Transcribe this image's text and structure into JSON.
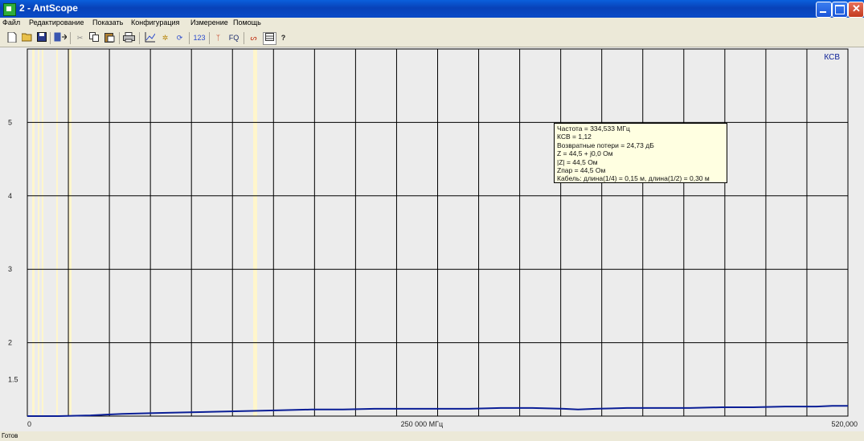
{
  "window": {
    "title": "2 - AntScope",
    "buttons": {
      "minimize": "_",
      "maximize": "□",
      "close": "✕"
    }
  },
  "menu": [
    "Файл",
    "Редактирование",
    "Показать",
    "Конфигурация",
    "Измерение",
    "Помощь"
  ],
  "toolbar": {
    "items": [
      "new-icon",
      "open-icon",
      "save-icon",
      "export-icon",
      "cut-icon",
      "copy-icon",
      "paste-icon",
      "print-icon",
      "graph-icon",
      "marker-icon",
      "refresh-icon",
      "numbers-icon",
      "antenna-icon",
      "fq-icon",
      "cable-icon",
      "table-icon",
      "help-icon"
    ],
    "numbers_label": "123",
    "fq_label": "FQ"
  },
  "chart_data": {
    "type": "line",
    "legend": "КСВ",
    "y_ticks": [
      "5",
      "4",
      "3",
      "2",
      "1.5"
    ],
    "x_ticks": [
      "0",
      "250 000 МГц",
      "520,000"
    ],
    "xlim": [
      0,
      520000
    ],
    "ylim": [
      1,
      6
    ],
    "grid": true,
    "series": [
      {
        "color": "#0a1e96",
        "x": [
          0,
          20000,
          40000,
          60000,
          80000,
          100000,
          120000,
          140000,
          160000,
          180000,
          200000,
          220000,
          240000,
          260000,
          280000,
          300000,
          320000,
          340000,
          349000,
          360000,
          380000,
          400000,
          420000,
          440000,
          460000,
          480000,
          500000,
          510000,
          520000
        ],
        "y": [
          1.0,
          1.0,
          1.01,
          1.03,
          1.04,
          1.05,
          1.06,
          1.07,
          1.08,
          1.09,
          1.09,
          1.1,
          1.1,
          1.1,
          1.1,
          1.11,
          1.11,
          1.1,
          1.09,
          1.1,
          1.11,
          1.11,
          1.11,
          1.12,
          1.12,
          1.13,
          1.13,
          1.14,
          1.14
        ]
      }
    ]
  },
  "tooltip": {
    "lines": [
      "Частота = 334,533 МГц",
      "КСВ = 1,12",
      "Возвратные потери = 24,73 дБ",
      "Z = 44,5 + j0,0 Ом",
      "|Z| = 44,5 Ом",
      "Zпар = 44,5 Ом",
      "Кабель: длина(1/4) = 0,15 м, длина(1/2) = 0,30 м"
    ]
  },
  "status": {
    "text": "Готов"
  },
  "colors": {
    "title_bar": "#0a4bc8",
    "plot_bg": "#ececec",
    "trace": "#0a1e96",
    "marker": "#fff6cc",
    "tooltip_bg": "#ffffe1"
  }
}
